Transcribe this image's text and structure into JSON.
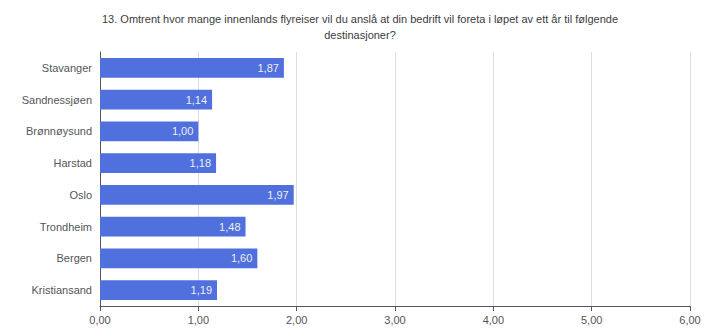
{
  "chart_data": {
    "type": "bar",
    "orientation": "horizontal",
    "title": "13. Omtrent hvor mange innenlands flyreiser vil du anslå at din bedrift vil foreta i løpet av ett år til følgende\ndestinasjoner?",
    "categories": [
      "Stavanger",
      "Sandnessjøen",
      "Brønnøysund",
      "Harstad",
      "Oslo",
      "Trondheim",
      "Bergen",
      "Kristiansand"
    ],
    "values": [
      1.87,
      1.14,
      1.0,
      1.18,
      1.97,
      1.48,
      1.6,
      1.19
    ],
    "value_labels": [
      "1,87",
      "1,14",
      "1,00",
      "1,18",
      "1,97",
      "1,48",
      "1,60",
      "1,19"
    ],
    "data_labels": true,
    "xlim": [
      0,
      6.0
    ],
    "xticks": [
      {
        "value": 0.0,
        "label": "0,00"
      },
      {
        "value": 1.0,
        "label": "1,00"
      },
      {
        "value": 2.0,
        "label": "2,00"
      },
      {
        "value": 3.0,
        "label": "3,00"
      },
      {
        "value": 4.0,
        "label": "4,00"
      },
      {
        "value": 5.0,
        "label": "5,00"
      },
      {
        "value": 6.0,
        "label": "6,00"
      }
    ],
    "grid": true
  }
}
